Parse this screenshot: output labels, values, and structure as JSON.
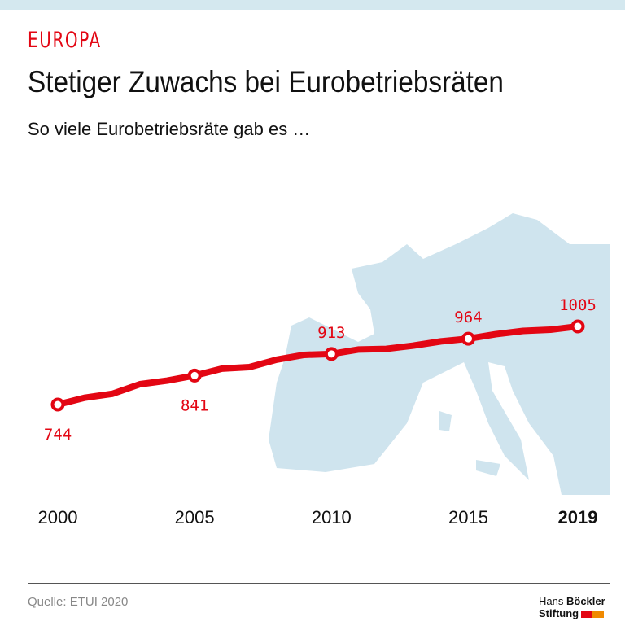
{
  "header": {
    "kicker": "EUROPA",
    "title": "Stetiger Zuwachs bei Eurobetriebsräten",
    "subtitle": "So viele Eurobetriebsräte gab es …"
  },
  "footer": {
    "source": "Quelle: ETUI 2020",
    "logo_line1_light": "Hans",
    "logo_line1_bold": "Böckler",
    "logo_line2": "Stiftung"
  },
  "colors": {
    "line": "#e30613",
    "map": "#cfe4ee",
    "logo_red": "#e30613",
    "logo_orange": "#f08a00"
  },
  "chart_data": {
    "type": "line",
    "title": "Stetiger Zuwachs bei Eurobetriebsräten",
    "x": [
      2000,
      2001,
      2002,
      2003,
      2004,
      2005,
      2006,
      2007,
      2008,
      2009,
      2010,
      2011,
      2012,
      2013,
      2014,
      2015,
      2016,
      2017,
      2018,
      2019
    ],
    "values": [
      744,
      767,
      780,
      812,
      824,
      841,
      864,
      869,
      894,
      910,
      913,
      928,
      930,
      941,
      955,
      964,
      979,
      990,
      994,
      1005
    ],
    "labeled_points": [
      {
        "x": 2000,
        "label": "744",
        "position": "below"
      },
      {
        "x": 2005,
        "label": "841",
        "position": "below"
      },
      {
        "x": 2010,
        "label": "913",
        "position": "above"
      },
      {
        "x": 2015,
        "label": "964",
        "position": "above"
      },
      {
        "x": 2019,
        "label": "1005",
        "position": "above"
      }
    ],
    "x_tick_labels": [
      "2000",
      "2005",
      "2010",
      "2015",
      "2019"
    ],
    "highlight_tick": "2019",
    "grid": false,
    "background": "map of Europe"
  }
}
